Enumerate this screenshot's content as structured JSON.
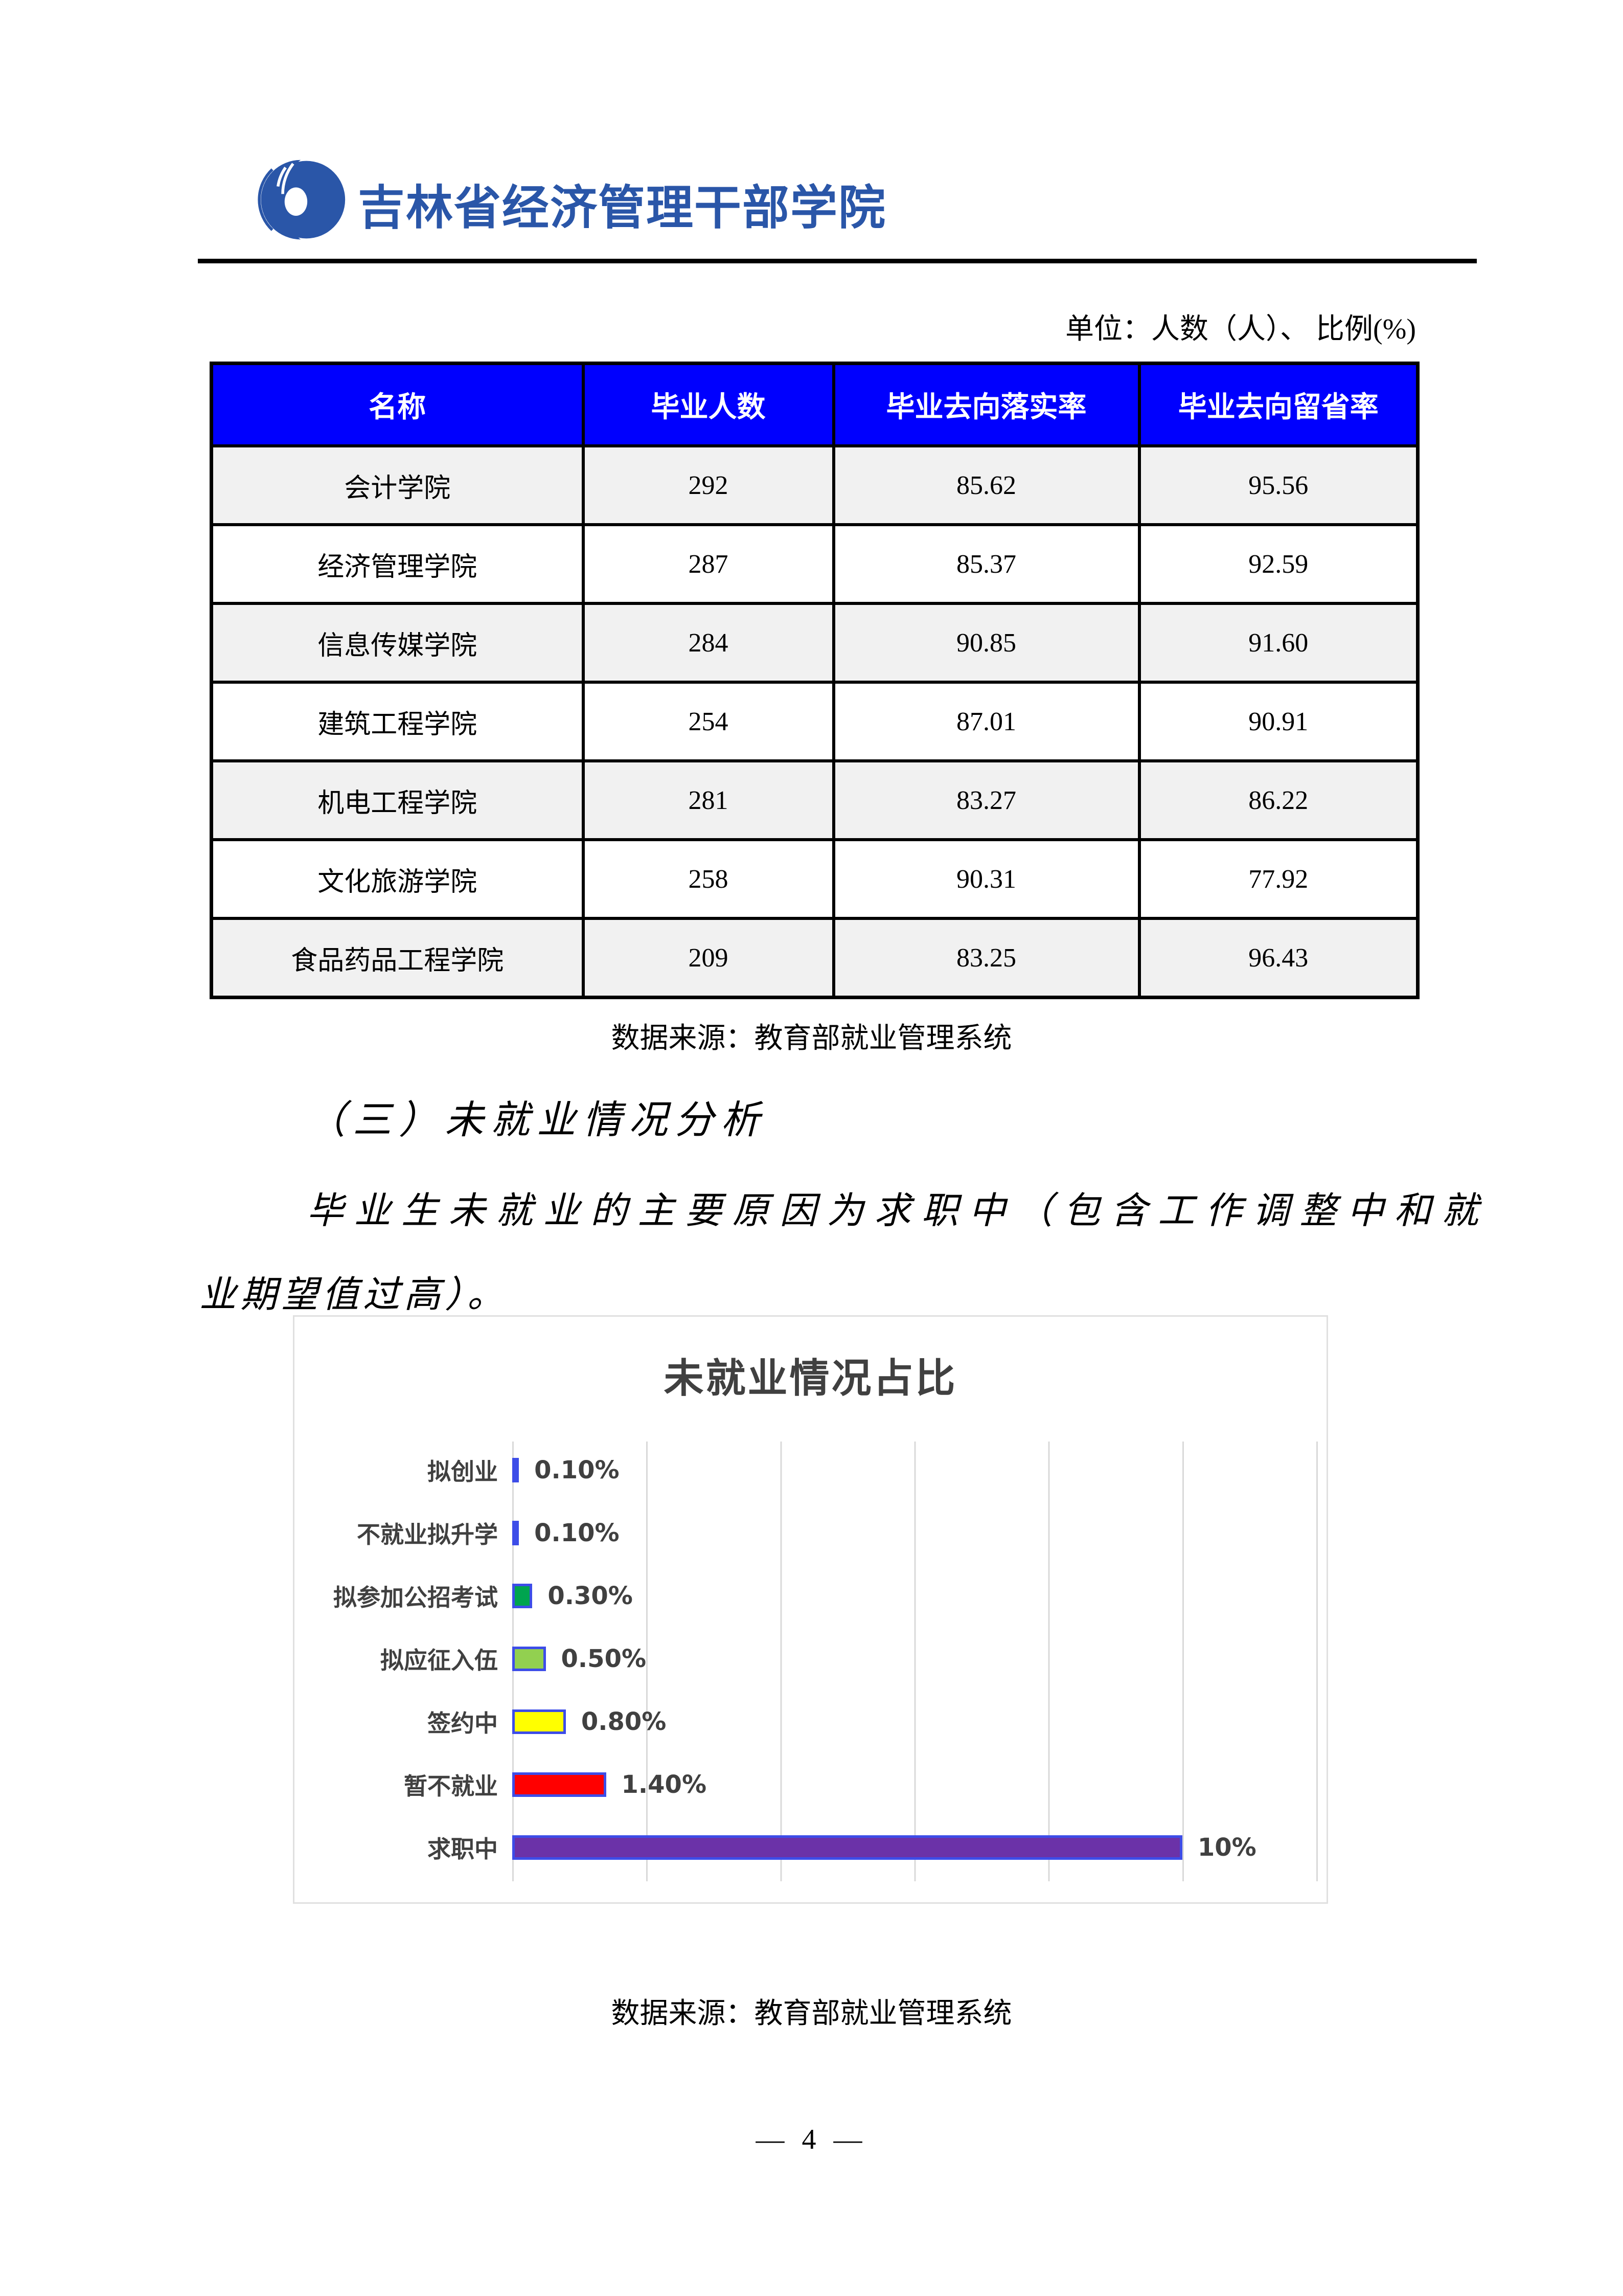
{
  "header": {
    "institution": "吉林省经济管理干部学院",
    "logo_color": "#2A56A8"
  },
  "unit_note": "单位：人数（人）、 比例(%)",
  "table": {
    "columns": [
      "名称",
      "毕业人数",
      "毕业去向落实率",
      "毕业去向留省率"
    ],
    "rows": [
      [
        "会计学院",
        "292",
        "85.62",
        "95.56"
      ],
      [
        "经济管理学院",
        "287",
        "85.37",
        "92.59"
      ],
      [
        "信息传媒学院",
        "284",
        "90.85",
        "91.60"
      ],
      [
        "建筑工程学院",
        "254",
        "87.01",
        "90.91"
      ],
      [
        "机电工程学院",
        "281",
        "83.27",
        "86.22"
      ],
      [
        "文化旅游学院",
        "258",
        "90.31",
        "77.92"
      ],
      [
        "食品药品工程学院",
        "209",
        "83.25",
        "96.43"
      ]
    ],
    "header_bg": "#0000FE",
    "source_note": "数据来源：教育部就业管理系统"
  },
  "section": {
    "heading": "（三）未就业情况分析",
    "paragraph_line1": "毕业生未就业的主要原因为求职中（包含工作调整中和就",
    "paragraph_line2": "业期望值过高）。"
  },
  "chart_data": {
    "type": "bar",
    "orientation": "horizontal",
    "title": "未就业情况占比",
    "categories": [
      "拟创业",
      "不就业拟升学",
      "拟参加公招考试",
      "拟应征入伍",
      "签约中",
      "暂不就业",
      "求职中"
    ],
    "values": [
      0.1,
      0.1,
      0.3,
      0.5,
      0.8,
      1.4,
      10
    ],
    "value_labels": [
      "0.10%",
      "0.10%",
      "0.30%",
      "0.50%",
      "0.80%",
      "1.40%",
      "10%"
    ],
    "bar_colors": [
      "#3D4DE8",
      "#3D4DE8",
      "#00A44F",
      "#92D050",
      "#FFFF00",
      "#FF0000",
      "#6B32A8"
    ],
    "bar_border_color": "#3D4DE8",
    "xlim": [
      0,
      12
    ],
    "gridline_step": 2,
    "grid": true,
    "legend": false,
    "gridline_color": "#D9D9D9",
    "text_color": "#404040",
    "source_note": "数据来源：教育部就业管理系统"
  },
  "footer": {
    "page_label": "—  4  —"
  }
}
